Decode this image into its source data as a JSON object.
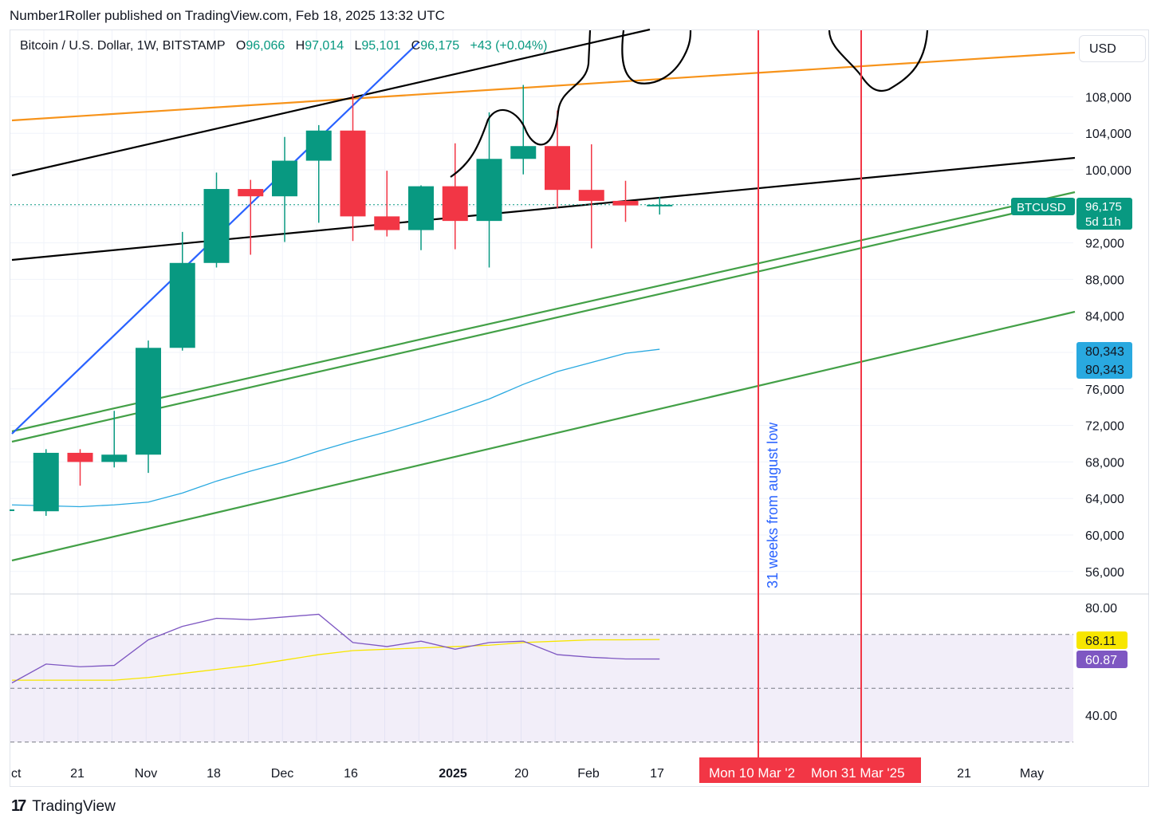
{
  "header": {
    "publisher_text": "Number1Roller published on TradingView.com, Feb 18, 2025 13:32 UTC"
  },
  "legend": {
    "symbol": "Bitcoin / U.S. Dollar, 1W, BITSTAMP",
    "o_label": "O",
    "o_value": "96,066",
    "h_label": "H",
    "h_value": "97,014",
    "l_label": "L",
    "l_value": "95,101",
    "c_label": "C",
    "c_value": "96,175",
    "change": "+43 (+0.04%)"
  },
  "currency_button": "USD",
  "footer": {
    "brand": "TradingView"
  },
  "colors": {
    "up": "#089981",
    "down": "#f23645",
    "rsi": "#7e57c2",
    "rsi_ma": "#f7e600",
    "sma": "#29a9e0",
    "orange": "#f7931a",
    "green_line": "#43a047",
    "blue_line": "#2962ff",
    "marker": "#f23645"
  },
  "chart_data": {
    "type": "candlestick",
    "symbol": "BTCUSD",
    "interval": "1W",
    "x_ticks": [
      "ct",
      "21",
      "Nov",
      "18",
      "Dec",
      "16",
      "2025",
      "20",
      "Feb",
      "17",
      "21",
      "May"
    ],
    "y_ticks": [
      "108,000",
      "104,000",
      "100,000",
      "92,000",
      "88,000",
      "84,000",
      "76,000",
      "72,000",
      "68,000",
      "64,000",
      "60,000",
      "56,000"
    ],
    "candles": [
      {
        "o": 62800,
        "h": 62800,
        "l": 62800,
        "c": 62800
      },
      {
        "o": 62600,
        "h": 69400,
        "l": 62100,
        "c": 69000
      },
      {
        "o": 69000,
        "h": 69400,
        "l": 65400,
        "c": 68000
      },
      {
        "o": 68000,
        "h": 73600,
        "l": 67400,
        "c": 68800
      },
      {
        "o": 68800,
        "h": 81300,
        "l": 66800,
        "c": 80500
      },
      {
        "o": 80500,
        "h": 93200,
        "l": 80200,
        "c": 89800
      },
      {
        "o": 89800,
        "h": 99700,
        "l": 89300,
        "c": 97900
      },
      {
        "o": 97900,
        "h": 98900,
        "l": 90700,
        "c": 97100
      },
      {
        "o": 97100,
        "h": 103600,
        "l": 92100,
        "c": 101000
      },
      {
        "o": 101000,
        "h": 104900,
        "l": 94200,
        "c": 104300
      },
      {
        "o": 104300,
        "h": 108300,
        "l": 92200,
        "c": 94900
      },
      {
        "o": 94900,
        "h": 99900,
        "l": 92700,
        "c": 93400
      },
      {
        "o": 93400,
        "h": 98300,
        "l": 91200,
        "c": 98200
      },
      {
        "o": 98200,
        "h": 102900,
        "l": 91300,
        "c": 94400
      },
      {
        "o": 94400,
        "h": 106300,
        "l": 89300,
        "c": 101200
      },
      {
        "o": 101200,
        "h": 109300,
        "l": 99500,
        "c": 102600
      },
      {
        "o": 102600,
        "h": 106500,
        "l": 95800,
        "c": 97800
      },
      {
        "o": 97800,
        "h": 102800,
        "l": 91400,
        "c": 96600
      },
      {
        "o": 96600,
        "h": 98800,
        "l": 94300,
        "c": 96100
      },
      {
        "o": 96066,
        "h": 97014,
        "l": 95101,
        "c": 96175
      }
    ],
    "sma": [
      63300,
      63200,
      63100,
      63300,
      63600,
      64600,
      65900,
      67000,
      68000,
      69200,
      70300,
      71300,
      72400,
      73600,
      74900,
      76500,
      77900,
      78900,
      79900,
      80343
    ],
    "last_price_label": "BTCUSD",
    "last_price": "96,175",
    "countdown": "5d 11h",
    "sma_labels": [
      "80,343",
      "80,343"
    ],
    "rsi": {
      "y_ticks": [
        "80.00",
        "40.00"
      ],
      "bands": [
        70,
        30
      ],
      "rsi_values": [
        52,
        59,
        58,
        58.5,
        68,
        73,
        76,
        75.5,
        76.5,
        77.5,
        67,
        65.5,
        67.5,
        64.5,
        67,
        67.5,
        62.5,
        61.5,
        60.9,
        60.87
      ],
      "ma_values": [
        53,
        53,
        53,
        53,
        54,
        55.5,
        57,
        58.5,
        60.5,
        62.5,
        64,
        64.5,
        65,
        65.5,
        66,
        67,
        67.5,
        68,
        68,
        68.11
      ],
      "value_rsi": "60.87",
      "value_ma": "68.11"
    },
    "annotation_text": "31 weeks from august low",
    "markers": [
      "Mon 10 Mar '2",
      "Mon 31 Mar '25"
    ]
  }
}
